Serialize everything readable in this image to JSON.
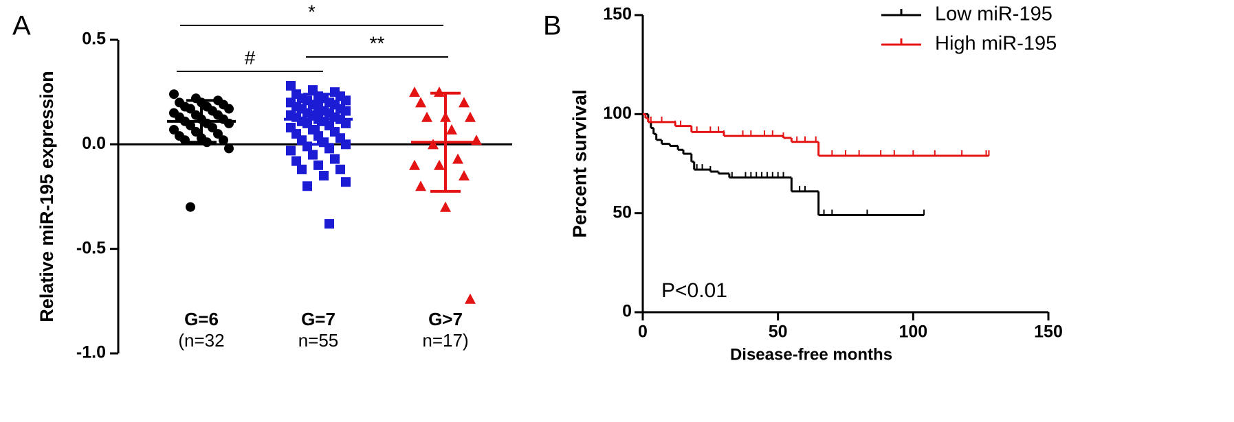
{
  "chart_data": [
    {
      "type": "strip",
      "panel_label": "A",
      "ylabel": "Relative miR-195 expression",
      "categories": [
        "G=6",
        "G=7",
        "G>7"
      ],
      "subcategories": [
        "(n=32",
        "n=55",
        "n=17)"
      ],
      "ylim": [
        -1.0,
        0.5
      ],
      "yticks": [
        {
          "value": -1.0,
          "label": "-1.0"
        },
        {
          "value": -0.5,
          "label": "-0.5"
        },
        {
          "value": 0.0,
          "label": "0.0"
        },
        {
          "value": 0.5,
          "label": "0.5"
        }
      ],
      "series": [
        {
          "color": "#000000",
          "marker": "circle",
          "mean": 0.11,
          "sd": 0.1,
          "values": [
            0.24,
            0.22,
            0.21,
            0.2,
            0.2,
            0.19,
            0.18,
            0.18,
            0.17,
            0.17,
            0.16,
            0.15,
            0.14,
            0.14,
            0.13,
            0.12,
            0.12,
            0.11,
            0.1,
            0.1,
            0.09,
            0.08,
            0.07,
            0.06,
            0.05,
            0.04,
            0.03,
            0.02,
            0.02,
            0.01,
            -0.02,
            -0.3
          ]
        },
        {
          "color": "#1c1cd4",
          "marker": "square",
          "mean": 0.12,
          "sd": 0.12,
          "values": [
            0.28,
            0.26,
            0.25,
            0.24,
            0.23,
            0.23,
            0.22,
            0.22,
            0.21,
            0.21,
            0.2,
            0.2,
            0.19,
            0.19,
            0.18,
            0.18,
            0.17,
            0.17,
            0.16,
            0.16,
            0.15,
            0.15,
            0.14,
            0.14,
            0.13,
            0.13,
            0.12,
            0.12,
            0.11,
            0.11,
            0.1,
            0.1,
            0.09,
            0.08,
            0.07,
            0.06,
            0.05,
            0.04,
            0.03,
            0.02,
            0.01,
            0.0,
            -0.01,
            -0.02,
            -0.03,
            -0.05,
            -0.07,
            -0.08,
            -0.1,
            -0.12,
            -0.12,
            -0.15,
            -0.18,
            -0.2,
            -0.38
          ]
        },
        {
          "color": "#e41414",
          "marker": "triangle",
          "mean": 0.01,
          "sd": 0.235,
          "values": [
            0.25,
            0.25,
            0.2,
            0.2,
            0.13,
            0.13,
            0.13,
            0.07,
            0.02,
            0.0,
            -0.07,
            -0.1,
            -0.1,
            -0.15,
            -0.2,
            -0.3,
            -0.74
          ]
        }
      ],
      "annotations": [
        "*",
        "#",
        "**"
      ]
    },
    {
      "type": "survival",
      "panel_label": "B",
      "xlabel": "Disease-free months",
      "ylabel": "Percent survival",
      "xlim": [
        0,
        150
      ],
      "ylim": [
        0,
        150
      ],
      "xticks": [
        0,
        50,
        100,
        150
      ],
      "yticks": [
        0,
        50,
        100,
        150
      ],
      "annotation": "P<0.01",
      "legend": "top-right",
      "series": [
        {
          "name": "Low miR-195",
          "color": "#000000",
          "x": [
            0,
            2,
            3,
            4,
            5,
            7,
            10,
            13,
            15,
            18,
            19,
            25,
            28,
            32,
            55,
            65,
            104
          ],
          "values": [
            100,
            96,
            93,
            90,
            87,
            85,
            84,
            82,
            80,
            76,
            72,
            71,
            70,
            68,
            61,
            49,
            49
          ],
          "censored": [
            20,
            22,
            25,
            33,
            38,
            40,
            42,
            44,
            46,
            48,
            50,
            52,
            58,
            60,
            67,
            70,
            83,
            104
          ]
        },
        {
          "name": "High miR-195",
          "color": "#e41414",
          "x": [
            0,
            1,
            2,
            12,
            18,
            30,
            52,
            55,
            65,
            128
          ],
          "values": [
            100,
            98,
            96,
            94,
            91,
            89,
            88,
            86,
            79,
            79
          ],
          "censored": [
            3,
            7,
            12,
            14,
            20,
            25,
            28,
            30,
            37,
            40,
            45,
            48,
            52,
            57,
            60,
            64,
            70,
            75,
            80,
            88,
            93,
            100,
            108,
            118,
            127,
            128
          ]
        }
      ]
    }
  ]
}
